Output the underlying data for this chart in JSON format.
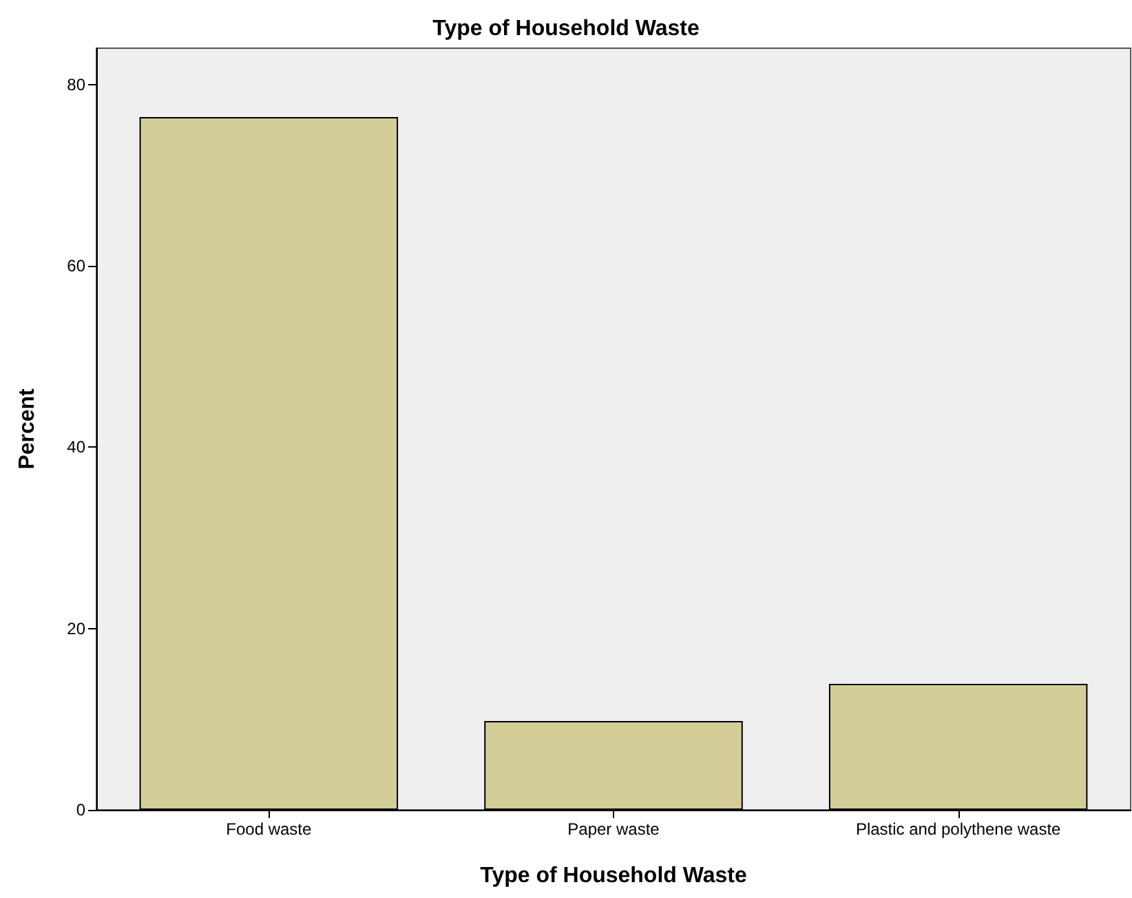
{
  "chart_data": {
    "type": "bar",
    "title": "Type of Household Waste",
    "xlabel": "Type of Household Waste",
    "ylabel": "Percent",
    "categories": [
      "Food waste",
      "Paper waste",
      "Plastic and polythene waste"
    ],
    "values": [
      76.4,
      9.8,
      13.9
    ],
    "color": "#d3ce98",
    "ylim": [
      0,
      84
    ],
    "yticks": [
      0,
      20,
      40,
      60,
      80
    ],
    "grid": false
  }
}
